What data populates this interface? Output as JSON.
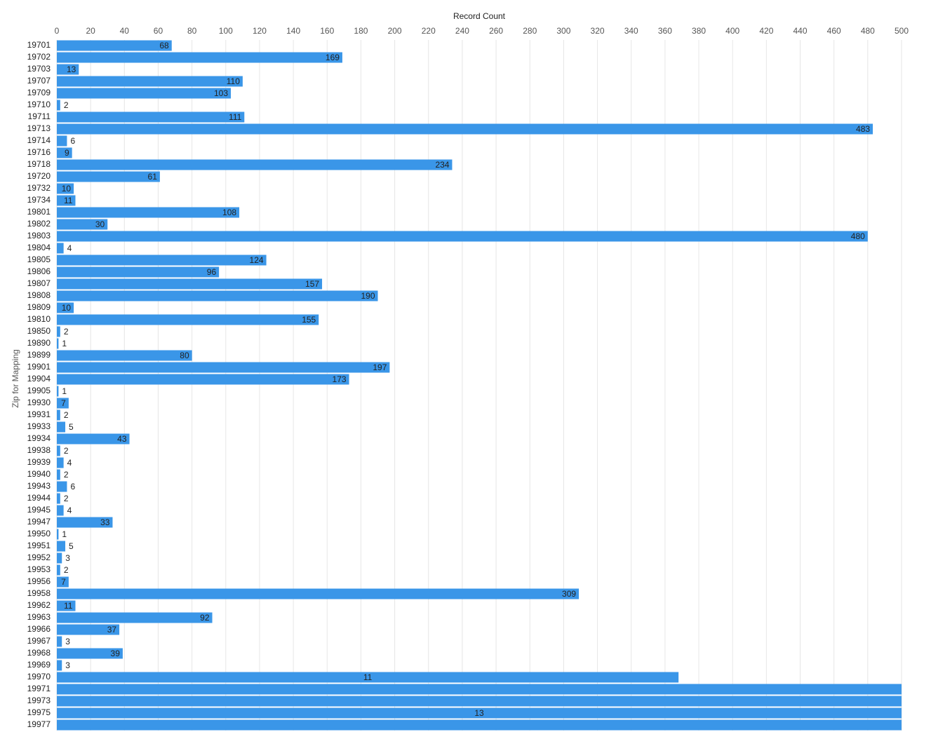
{
  "chart_data": {
    "type": "bar",
    "orientation": "horizontal",
    "x_label": "Record Count",
    "y_label": "Zip for Mapping",
    "color": "#3a96e8",
    "grid": true,
    "xlim": [
      0,
      500
    ],
    "xticks": [
      0,
      20,
      40,
      60,
      80,
      100,
      120,
      140,
      160,
      180,
      200,
      220,
      240,
      260,
      280,
      300,
      320,
      340,
      360,
      380,
      400,
      420,
      440,
      460,
      480,
      500
    ],
    "categories": [
      "19701",
      "19702",
      "19703",
      "19707",
      "19709",
      "19710",
      "19711",
      "19713",
      "19714",
      "19716",
      "19718",
      "19720",
      "19732",
      "19734",
      "19801",
      "19802",
      "19803",
      "19804",
      "19805",
      "19806",
      "19807",
      "19808",
      "19809",
      "19810",
      "19850",
      "19890",
      "19899",
      "19901",
      "19904",
      "19905",
      "19930",
      "19931",
      "19933",
      "19934",
      "19938",
      "19939",
      "19940",
      "19943",
      "19944",
      "19945",
      "19947",
      "19950",
      "19951",
      "19952",
      "19953",
      "19956",
      "19958",
      "19962",
      "19963",
      "19966",
      "19967",
      "19968",
      "19969",
      "19970",
      "19971",
      "19973",
      "19975",
      "19977"
    ],
    "values": [
      68,
      169,
      13,
      110,
      103,
      2,
      111,
      483,
      6,
      9,
      234,
      61,
      10,
      11,
      108,
      30,
      480,
      4,
      124,
      96,
      157,
      190,
      10,
      155,
      2,
      1,
      80,
      197,
      173,
      1,
      7,
      2,
      5,
      43,
      2,
      4,
      2,
      6,
      2,
      4,
      33,
      1,
      5,
      3,
      2,
      7,
      309,
      11,
      92,
      37,
      3,
      39,
      3,
      368,
      500,
      500,
      500,
      500
    ],
    "value_labels": [
      "68",
      "169",
      "13",
      "110",
      "103",
      "2",
      "111",
      "483",
      "6",
      "9",
      "234",
      "61",
      "10",
      "11",
      "108",
      "30",
      "480",
      "4",
      "124",
      "96",
      "157",
      "190",
      "10",
      "155",
      "2",
      "1",
      "80",
      "197",
      "173",
      "1",
      "7",
      "2",
      "5",
      "43",
      "2",
      "4",
      "2",
      "6",
      "2",
      "4",
      "33",
      "1",
      "5",
      "3",
      "2",
      "7",
      "309",
      "11",
      "92",
      "37",
      "3",
      "39",
      "3",
      null,
      null,
      null,
      null,
      null
    ],
    "annotations": [
      {
        "category": "19970",
        "text": "11"
      },
      {
        "category": "19975",
        "text": "13"
      }
    ]
  }
}
